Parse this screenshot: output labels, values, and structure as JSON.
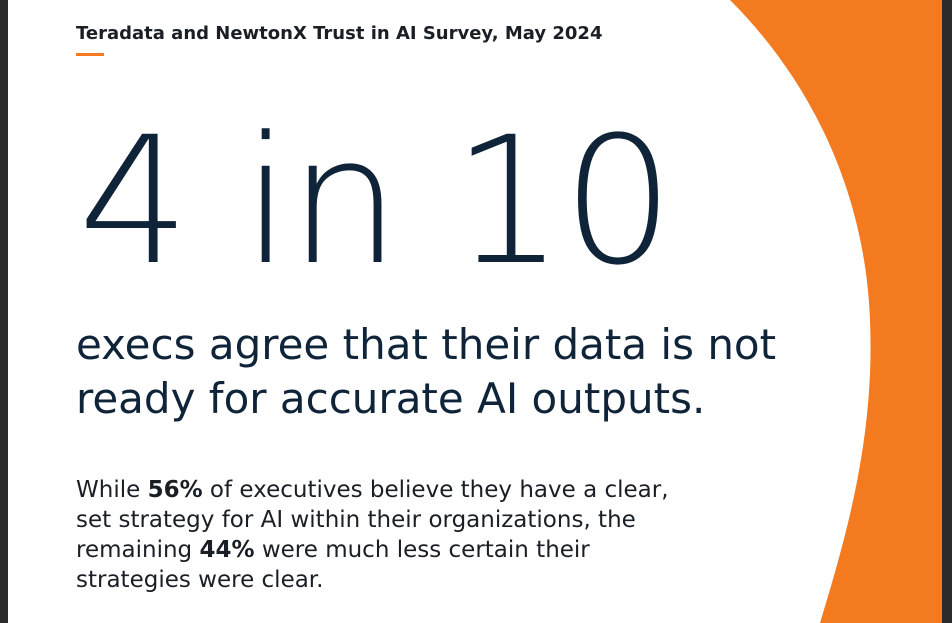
{
  "source": {
    "text": "Teradata and NewtonX Trust in AI Survey, May 2024"
  },
  "headline": {
    "text": "4 in 10"
  },
  "subheading": {
    "line1": "execs agree that their data is not",
    "line2": "ready for accurate AI outputs."
  },
  "body": {
    "line1_a": "While ",
    "line1_b": "56%",
    "line1_c": " of executives believe they have a clear,",
    "line2": "set strategy for AI within their organizations, the",
    "line3_a": "remaining ",
    "line3_b": "44%",
    "line3_c": " were much less certain their",
    "line4": "strategies were clear."
  },
  "colors": {
    "accent": "#f47a1f",
    "text": "#0f2339",
    "background": "#ffffff"
  }
}
